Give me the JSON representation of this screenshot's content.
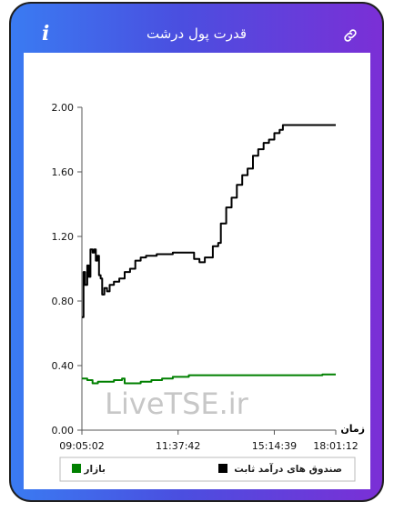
{
  "header": {
    "title": "قدرت پول درشت",
    "info_icon": "info-icon",
    "link_icon": "link-icon"
  },
  "chart_data": {
    "type": "line",
    "xlabel": "زمان",
    "ylim": [
      0,
      2.0
    ],
    "yticks": [
      "0.00",
      "0.40",
      "0.80",
      "1.20",
      "1.60",
      "2.00"
    ],
    "xticks": [
      "09:05:02",
      "11:37:42",
      "15:14:39",
      "18:01:12"
    ],
    "watermark": "LiveTSE.ir",
    "legend_position": "bottom",
    "series": [
      {
        "name": "صندوق های درآمد ثابت",
        "color": "#000000",
        "points": [
          [
            0,
            0.7
          ],
          [
            0.3,
            0.98
          ],
          [
            0.6,
            0.9
          ],
          [
            1.0,
            1.02
          ],
          [
            1.3,
            0.95
          ],
          [
            1.6,
            1.12
          ],
          [
            2.0,
            1.1
          ],
          [
            2.3,
            1.12
          ],
          [
            2.6,
            1.05
          ],
          [
            2.9,
            1.08
          ],
          [
            3.2,
            0.96
          ],
          [
            3.5,
            0.94
          ],
          [
            3.8,
            0.84
          ],
          [
            4.2,
            0.88
          ],
          [
            4.7,
            0.86
          ],
          [
            5.2,
            0.9
          ],
          [
            6.0,
            0.92
          ],
          [
            7.0,
            0.94
          ],
          [
            8.0,
            0.98
          ],
          [
            9.0,
            1.0
          ],
          [
            10.0,
            1.05
          ],
          [
            11.0,
            1.07
          ],
          [
            12.0,
            1.08
          ],
          [
            14.0,
            1.09
          ],
          [
            17.0,
            1.1
          ],
          [
            19.0,
            1.1
          ],
          [
            20.0,
            1.1
          ],
          [
            21.0,
            1.06
          ],
          [
            22.0,
            1.04
          ],
          [
            23.0,
            1.07
          ],
          [
            24.5,
            1.14
          ],
          [
            25.5,
            1.16
          ],
          [
            26.0,
            1.28
          ],
          [
            27.0,
            1.38
          ],
          [
            28.0,
            1.44
          ],
          [
            29.0,
            1.52
          ],
          [
            30.0,
            1.58
          ],
          [
            31.0,
            1.62
          ],
          [
            32.0,
            1.7
          ],
          [
            33.0,
            1.74
          ],
          [
            34.0,
            1.78
          ],
          [
            35.0,
            1.8
          ],
          [
            36.0,
            1.84
          ],
          [
            37.0,
            1.86
          ],
          [
            37.6,
            1.89
          ],
          [
            39.0,
            1.89
          ],
          [
            42.0,
            1.89
          ],
          [
            45.0,
            1.89
          ],
          [
            47.5,
            1.89
          ]
        ]
      },
      {
        "name": "بازار",
        "color": "#008000",
        "points": [
          [
            0,
            0.32
          ],
          [
            1.0,
            0.31
          ],
          [
            2.0,
            0.29
          ],
          [
            3.0,
            0.3
          ],
          [
            4.0,
            0.3
          ],
          [
            6.0,
            0.31
          ],
          [
            7.5,
            0.32
          ],
          [
            8.0,
            0.29
          ],
          [
            9.0,
            0.29
          ],
          [
            11.0,
            0.3
          ],
          [
            13.0,
            0.31
          ],
          [
            15.0,
            0.32
          ],
          [
            17.0,
            0.33
          ],
          [
            19.0,
            0.33
          ],
          [
            20.0,
            0.34
          ],
          [
            25.0,
            0.34
          ],
          [
            30.0,
            0.34
          ],
          [
            35.0,
            0.34
          ],
          [
            40.0,
            0.34
          ],
          [
            45.0,
            0.345
          ],
          [
            47.5,
            0.345
          ]
        ]
      }
    ],
    "x_tick_positions": [
      0,
      18,
      36,
      47.5
    ]
  }
}
